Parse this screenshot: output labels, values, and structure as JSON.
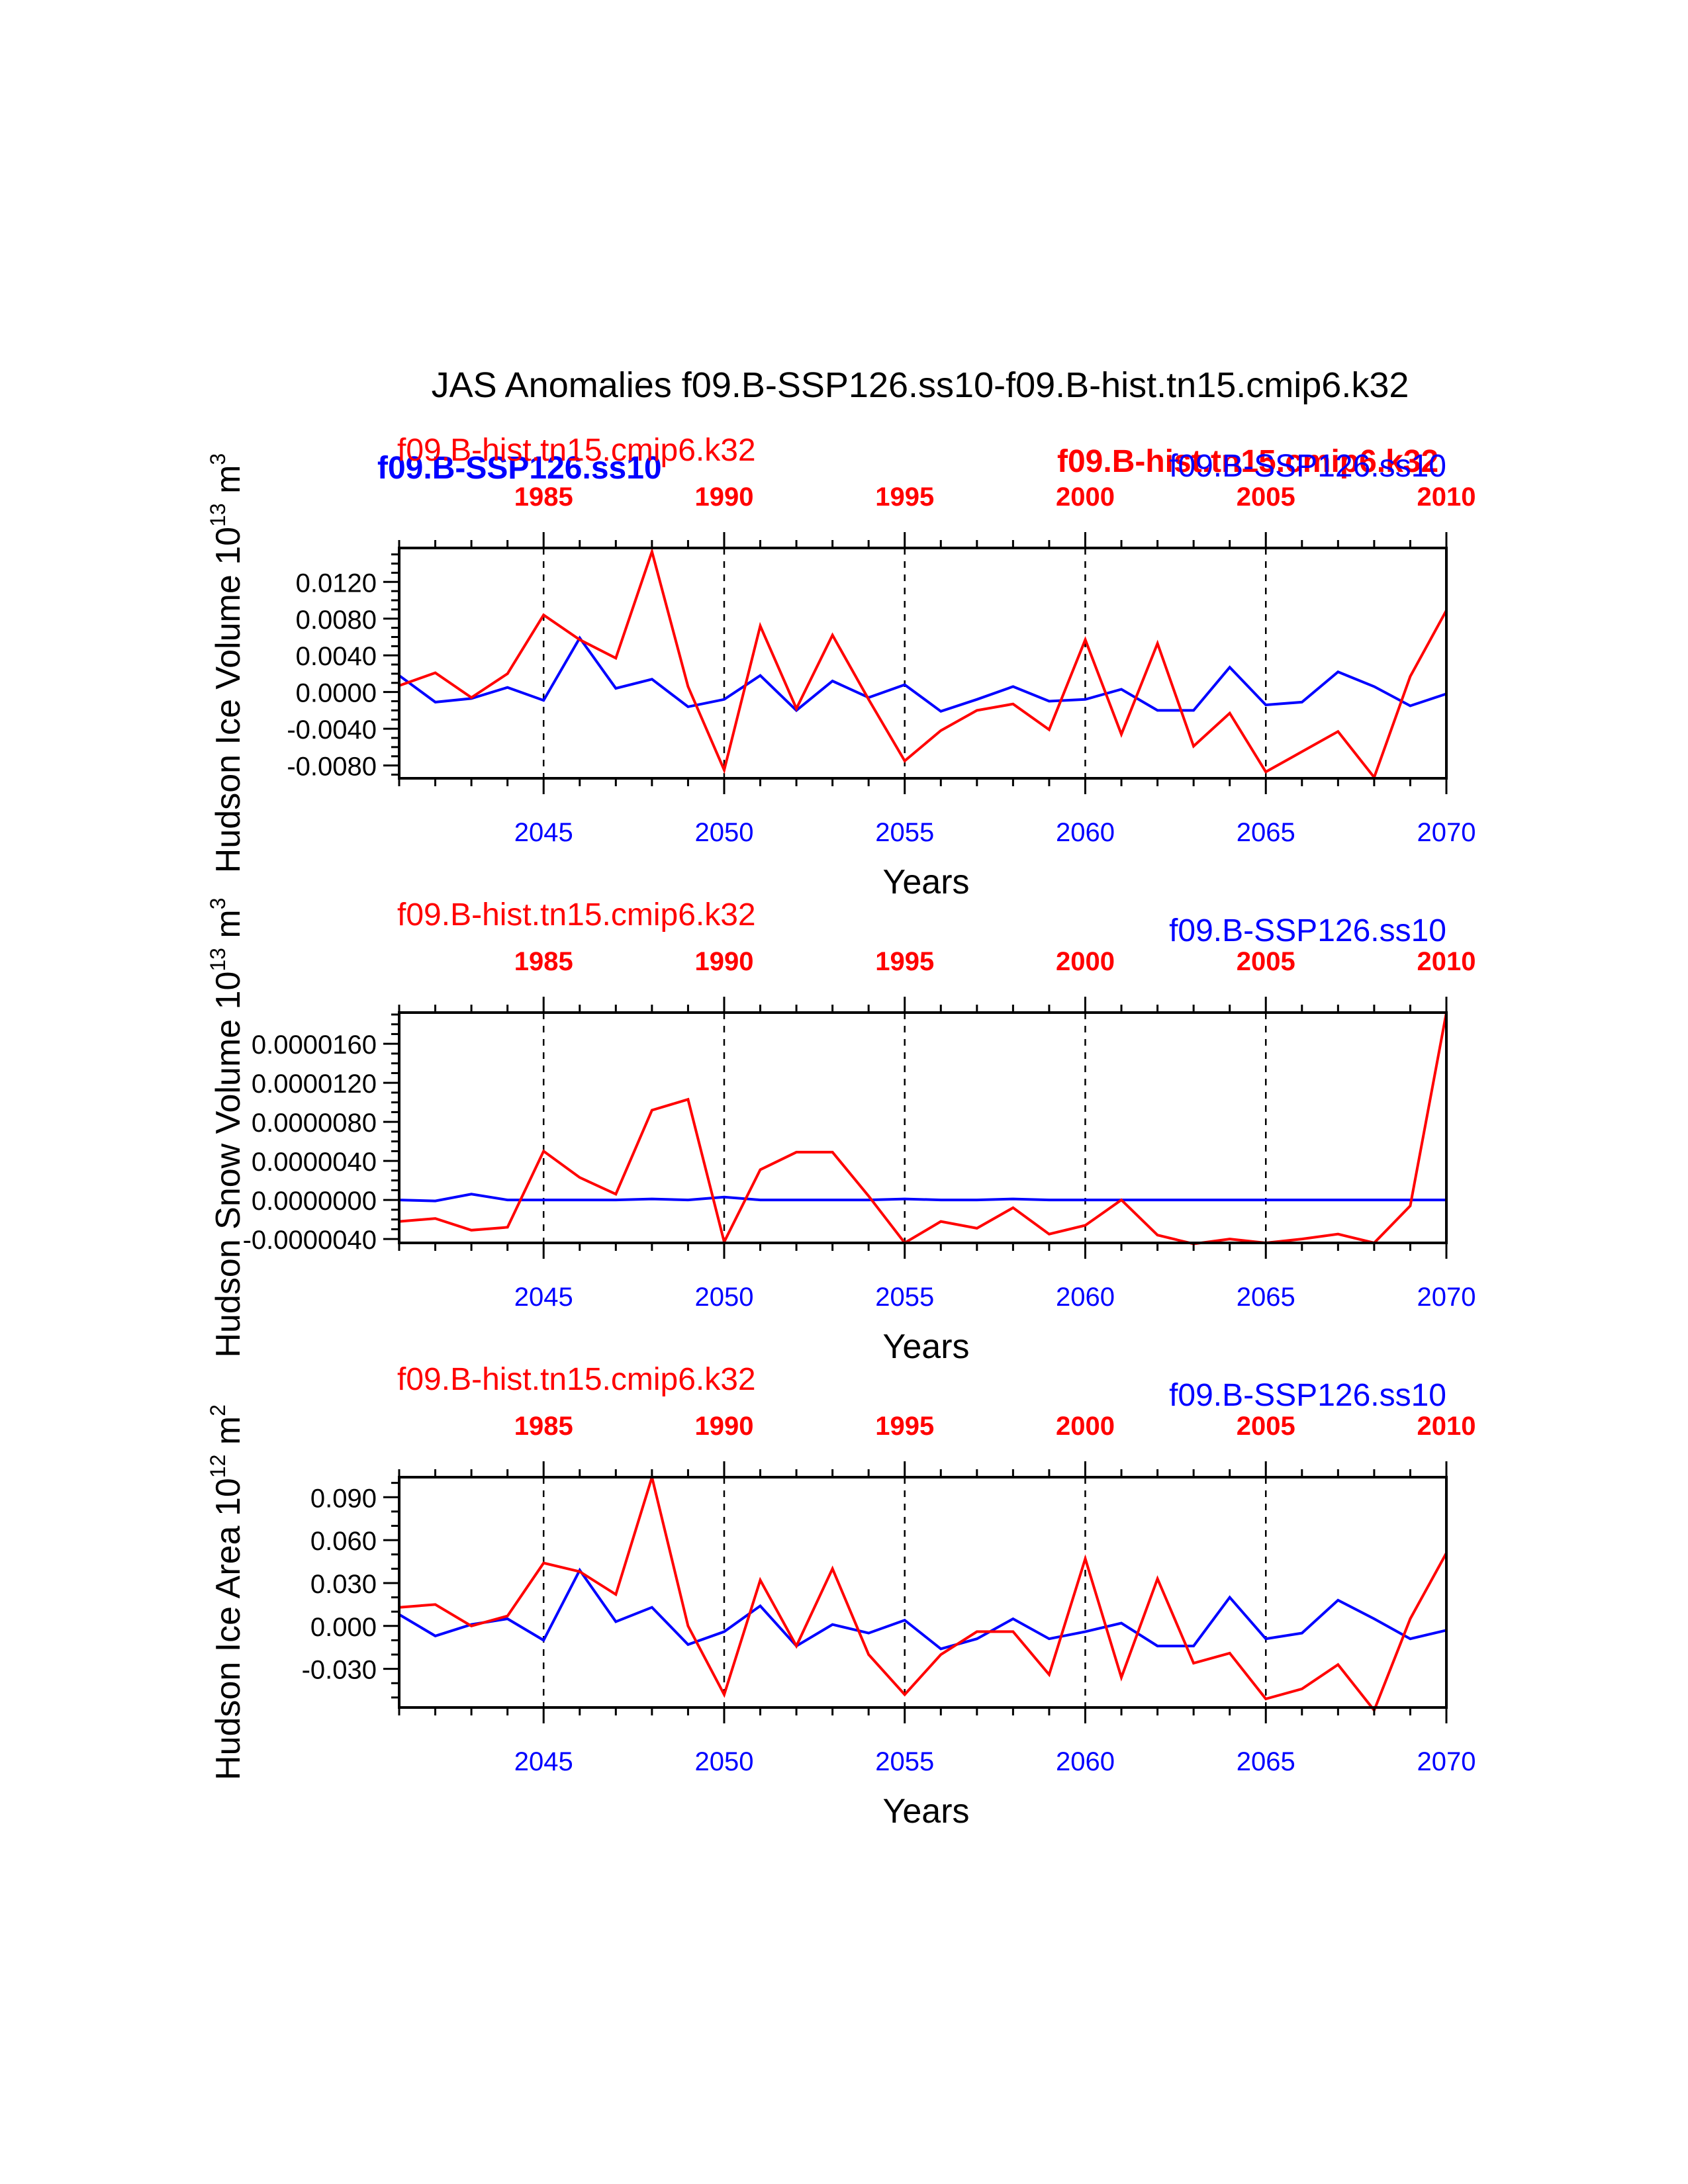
{
  "title": "JAS Anomalies f09.B-SSP126.ss10-f09.B-hist.tn15.cmip6.k32",
  "colors": {
    "hist": "#ff0000",
    "ssp": "#0000ff",
    "axis": "#000000"
  },
  "overlay_labels": {
    "ssp_bold": "f09.B-SSP126.ss10",
    "hist_bold": "f09.B-hist.tn15.cmip6.k32"
  },
  "chart_data": [
    {
      "type": "line",
      "ylabel": "Hudson Ice Volume 10",
      "ylabel_exp": "13",
      "ylabel_unit": " m",
      "ylabel_unit_exp": "3",
      "xlabel": "Years",
      "hist_label": "f09.B-hist.tn15.cmip6.k32",
      "ssp_label": "f09.B-SSP126.ss10",
      "ylim": [
        -0.0094,
        0.0157
      ],
      "yticks": [
        -0.008,
        -0.004,
        0.0,
        0.004,
        0.008,
        0.012
      ],
      "ytick_labels": [
        "-0.0080",
        "-0.0040",
        "0.0000",
        "0.0040",
        "0.0080",
        "0.0120"
      ],
      "yminor_step": 0.001,
      "bottom_xlim": [
        2041,
        2070
      ],
      "bottom_ticks": [
        2045,
        2050,
        2055,
        2060,
        2065,
        2070
      ],
      "top_xlim": [
        1981,
        2010
      ],
      "top_ticks": [
        1985,
        1990,
        1995,
        2000,
        2005,
        2010
      ],
      "series": [
        {
          "name": "f09.B-SSP126.ss10",
          "x": [
            2041,
            2042,
            2043,
            2044,
            2045,
            2046,
            2047,
            2048,
            2049,
            2050,
            2051,
            2052,
            2053,
            2054,
            2055,
            2056,
            2057,
            2058,
            2059,
            2060,
            2061,
            2062,
            2063,
            2064,
            2065,
            2066,
            2067,
            2068,
            2069,
            2070
          ],
          "values": [
            0.0018,
            -0.0011,
            -0.0007,
            0.0005,
            -0.0009,
            0.0059,
            0.0004,
            0.0014,
            -0.0016,
            -0.0008,
            0.0018,
            -0.002,
            0.0012,
            -0.0006,
            0.0008,
            -0.0021,
            -0.0008,
            0.0006,
            -0.001,
            -0.0008,
            0.0003,
            -0.002,
            -0.002,
            0.0027,
            -0.0014,
            -0.0011,
            0.0022,
            0.0006,
            -0.0015,
            -0.0002
          ]
        },
        {
          "name": "f09.B-hist.tn15.cmip6.k32",
          "x": [
            2041,
            2042,
            2043,
            2044,
            2045,
            2046,
            2047,
            2048,
            2049,
            2050,
            2051,
            2052,
            2053,
            2054,
            2055,
            2056,
            2057,
            2058,
            2059,
            2060,
            2061,
            2062,
            2063,
            2064,
            2065,
            2066,
            2067,
            2068,
            2069,
            2070
          ],
          "values": [
            0.0007,
            0.0021,
            -0.0006,
            0.002,
            0.0084,
            0.0057,
            0.0037,
            0.0153,
            0.0006,
            -0.0085,
            0.0072,
            -0.0018,
            0.0062,
            -0.0008,
            -0.0075,
            -0.0042,
            -0.002,
            -0.0013,
            -0.0041,
            0.0057,
            -0.0046,
            0.0053,
            -0.0059,
            -0.0023,
            -0.0087,
            -0.0065,
            -0.0043,
            -0.0093,
            0.0017,
            0.0089
          ]
        }
      ]
    },
    {
      "type": "line",
      "ylabel": "Hudson Snow Volume 10",
      "ylabel_exp": "13",
      "ylabel_unit": " m",
      "ylabel_unit_exp": "3",
      "xlabel": "Years",
      "hist_label": "f09.B-hist.tn15.cmip6.k32",
      "ssp_label": "f09.B-SSP126.ss10",
      "ylim": [
        -4.4e-06,
        1.92e-05
      ],
      "yticks": [
        -4e-06,
        0.0,
        4e-06,
        8e-06,
        1.2e-05,
        1.6e-05
      ],
      "ytick_labels": [
        "-0.0000040",
        "0.0000000",
        "0.0000040",
        "0.0000080",
        "0.0000120",
        "0.0000160"
      ],
      "yminor_step": 1e-06,
      "bottom_xlim": [
        2041,
        2070
      ],
      "bottom_ticks": [
        2045,
        2050,
        2055,
        2060,
        2065,
        2070
      ],
      "top_xlim": [
        1981,
        2010
      ],
      "top_ticks": [
        1985,
        1990,
        1995,
        2000,
        2005,
        2010
      ],
      "series": [
        {
          "name": "f09.B-SSP126.ss10",
          "x": [
            2041,
            2042,
            2043,
            2044,
            2045,
            2046,
            2047,
            2048,
            2049,
            2050,
            2051,
            2052,
            2053,
            2054,
            2055,
            2056,
            2057,
            2058,
            2059,
            2060,
            2061,
            2062,
            2063,
            2064,
            2065,
            2066,
            2067,
            2068,
            2069,
            2070
          ],
          "values": [
            0.0,
            -1e-07,
            6e-07,
            0.0,
            0.0,
            0.0,
            0.0,
            1e-07,
            0.0,
            3e-07,
            0.0,
            0.0,
            0.0,
            0.0,
            1e-07,
            0.0,
            0.0,
            1e-07,
            0.0,
            0.0,
            0.0,
            0.0,
            0.0,
            0.0,
            0.0,
            0.0,
            0.0,
            0.0,
            0.0,
            0.0
          ]
        },
        {
          "name": "f09.B-hist.tn15.cmip6.k32",
          "x": [
            2041,
            2042,
            2043,
            2044,
            2045,
            2046,
            2047,
            2048,
            2049,
            2050,
            2051,
            2052,
            2053,
            2054,
            2055,
            2056,
            2057,
            2058,
            2059,
            2060,
            2061,
            2062,
            2063,
            2064,
            2065,
            2066,
            2067,
            2068,
            2069,
            2070
          ],
          "values": [
            -2.2e-06,
            -1.9e-06,
            -3.1e-06,
            -2.8e-06,
            5e-06,
            2.3e-06,
            6e-07,
            9.2e-06,
            1.03e-05,
            -4.3e-06,
            3.1e-06,
            4.9e-06,
            4.9e-06,
            4e-07,
            -4.4e-06,
            -2.2e-06,
            -2.9e-06,
            -8e-07,
            -3.5e-06,
            -2.6e-06,
            0.0,
            -3.6e-06,
            -4.5e-06,
            -4e-06,
            -4.4e-06,
            -4e-06,
            -3.5e-06,
            -4.4e-06,
            -6e-07,
            1.92e-05
          ]
        }
      ]
    },
    {
      "type": "line",
      "ylabel": "Hudson Ice Area 10",
      "ylabel_exp": "12",
      "ylabel_unit": " m",
      "ylabel_unit_exp": "2",
      "xlabel": "Years",
      "hist_label": "f09.B-hist.tn15.cmip6.k32",
      "ssp_label": "f09.B-SSP126.ss10",
      "ylim": [
        -0.057,
        0.104
      ],
      "yticks": [
        -0.03,
        0.0,
        0.03,
        0.06,
        0.09
      ],
      "ytick_labels": [
        "-0.030",
        "0.000",
        "0.030",
        "0.060",
        "0.090"
      ],
      "yminor_step": 0.01,
      "bottom_xlim": [
        2041,
        2070
      ],
      "bottom_ticks": [
        2045,
        2050,
        2055,
        2060,
        2065,
        2070
      ],
      "top_xlim": [
        1981,
        2010
      ],
      "top_ticks": [
        1985,
        1990,
        1995,
        2000,
        2005,
        2010
      ],
      "series": [
        {
          "name": "f09.B-SSP126.ss10",
          "x": [
            2041,
            2042,
            2043,
            2044,
            2045,
            2046,
            2047,
            2048,
            2049,
            2050,
            2051,
            2052,
            2053,
            2054,
            2055,
            2056,
            2057,
            2058,
            2059,
            2060,
            2061,
            2062,
            2063,
            2064,
            2065,
            2066,
            2067,
            2068,
            2069,
            2070
          ],
          "values": [
            0.008,
            -0.007,
            0.001,
            0.005,
            -0.01,
            0.039,
            0.003,
            0.013,
            -0.013,
            -0.004,
            0.014,
            -0.014,
            0.001,
            -0.005,
            0.004,
            -0.016,
            -0.009,
            0.005,
            -0.009,
            -0.004,
            0.002,
            -0.014,
            -0.014,
            0.02,
            -0.009,
            -0.005,
            0.018,
            0.005,
            -0.009,
            -0.003
          ]
        },
        {
          "name": "f09.B-hist.tn15.cmip6.k32",
          "x": [
            2041,
            2042,
            2043,
            2044,
            2045,
            2046,
            2047,
            2048,
            2049,
            2050,
            2051,
            2052,
            2053,
            2054,
            2055,
            2056,
            2057,
            2058,
            2059,
            2060,
            2061,
            2062,
            2063,
            2064,
            2065,
            2066,
            2067,
            2068,
            2069,
            2070
          ],
          "values": [
            0.013,
            0.015,
            0.0,
            0.007,
            0.044,
            0.038,
            0.022,
            0.104,
            0.0,
            -0.048,
            0.032,
            -0.014,
            0.04,
            -0.02,
            -0.048,
            -0.02,
            -0.004,
            -0.004,
            -0.034,
            0.047,
            -0.036,
            0.033,
            -0.026,
            -0.019,
            -0.051,
            -0.044,
            -0.027,
            -0.059,
            0.005,
            0.051
          ]
        }
      ]
    }
  ]
}
